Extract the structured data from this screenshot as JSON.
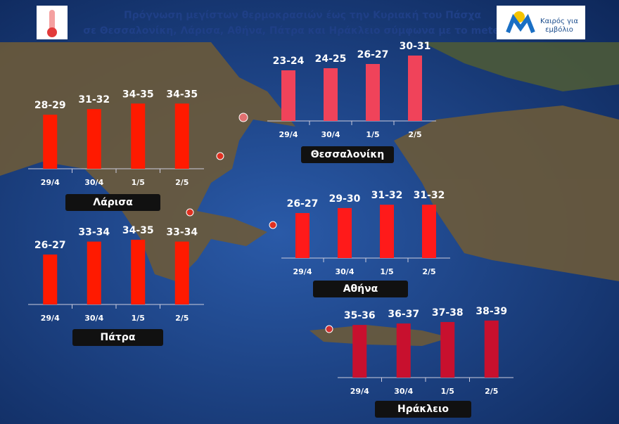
{
  "header": {
    "title_lines": [
      "Πρόγνωση μεγίστων θερμοκρασιών  έως την Κυριακή του Πάσχα",
      "σε Θεσσαλονίκη, Λάρισα, Αθήνα, Πάτρα και Ηράκλειο σύμφωνα με το meteo.gr"
    ],
    "logo_lines": [
      "Καιρός για",
      "εμβόλιο"
    ]
  },
  "chart_data": [
    {
      "type": "bar",
      "title": "Λάρισα",
      "categories": [
        "29/4",
        "30/4",
        "1/5",
        "2/5"
      ],
      "values": [
        [
          28,
          29
        ],
        [
          31,
          32
        ],
        [
          34,
          35
        ],
        [
          34,
          35
        ]
      ],
      "value_labels": [
        "28-29",
        "31-32",
        "34-35",
        "34-35"
      ],
      "color": "#ff1a00"
    },
    {
      "type": "bar",
      "title": "Θεσσαλονίκη",
      "categories": [
        "29/4",
        "30/4",
        "1/5",
        "2/5"
      ],
      "values": [
        [
          23,
          24
        ],
        [
          24,
          25
        ],
        [
          26,
          27
        ],
        [
          30,
          31
        ]
      ],
      "value_labels": [
        "23-24",
        "24-25",
        "26-27",
        "30-31"
      ],
      "color": "#f0435a"
    },
    {
      "type": "bar",
      "title": "Πάτρα",
      "categories": [
        "29/4",
        "30/4",
        "1/5",
        "2/5"
      ],
      "values": [
        [
          26,
          27
        ],
        [
          33,
          34
        ],
        [
          34,
          35
        ],
        [
          33,
          34
        ]
      ],
      "value_labels": [
        "26-27",
        "33-34",
        "34-35",
        "33-34"
      ],
      "color": "#ff1a00"
    },
    {
      "type": "bar",
      "title": "Αθήνα",
      "categories": [
        "29/4",
        "30/4",
        "1/5",
        "2/5"
      ],
      "values": [
        [
          26,
          27
        ],
        [
          29,
          30
        ],
        [
          31,
          32
        ],
        [
          31,
          32
        ]
      ],
      "value_labels": [
        "26-27",
        "29-30",
        "31-32",
        "31-32"
      ],
      "color": "#ff1a1a"
    },
    {
      "type": "bar",
      "title": "Ηράκλειο",
      "categories": [
        "29/4",
        "30/4",
        "1/5",
        "2/5"
      ],
      "values": [
        [
          35,
          36
        ],
        [
          36,
          37
        ],
        [
          37,
          38
        ],
        [
          38,
          39
        ]
      ],
      "value_labels": [
        "35-36",
        "36-37",
        "37-38",
        "38-39"
      ],
      "color": "#c8102e"
    }
  ]
}
